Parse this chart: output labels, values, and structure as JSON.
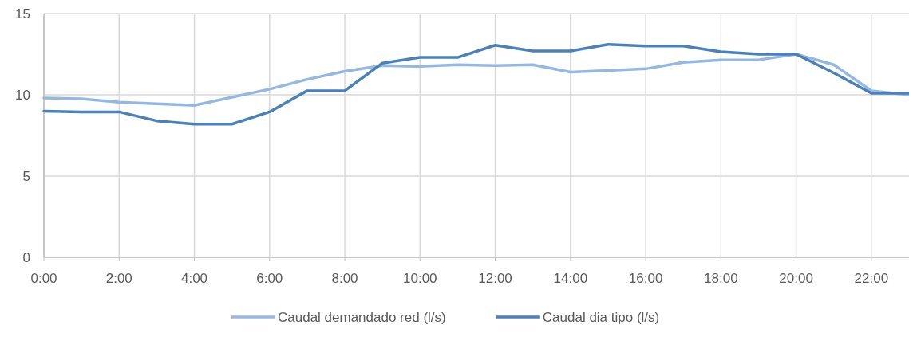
{
  "chart_data": {
    "type": "line",
    "x": [
      0,
      1,
      2,
      3,
      4,
      5,
      6,
      7,
      8,
      9,
      10,
      11,
      12,
      13,
      14,
      15,
      16,
      17,
      18,
      19,
      20,
      21,
      22,
      23
    ],
    "xlim": [
      0,
      23
    ],
    "xticks": [
      {
        "value": 0,
        "label": "0:00"
      },
      {
        "value": 2,
        "label": "2:00"
      },
      {
        "value": 4,
        "label": "4:00"
      },
      {
        "value": 6,
        "label": "6:00"
      },
      {
        "value": 8,
        "label": "8:00"
      },
      {
        "value": 10,
        "label": "10:00"
      },
      {
        "value": 12,
        "label": "12:00"
      },
      {
        "value": 14,
        "label": "14:00"
      },
      {
        "value": 16,
        "label": "16:00"
      },
      {
        "value": 18,
        "label": "18:00"
      },
      {
        "value": 20,
        "label": "20:00"
      },
      {
        "value": 22,
        "label": "22:00"
      }
    ],
    "ylim": [
      0,
      15
    ],
    "yticks": [
      0,
      5,
      10,
      15
    ],
    "grid": true,
    "legend": "bottom",
    "line_style": "solid",
    "marker": "none",
    "series": [
      {
        "name": "Caudal demandado red (l/s)",
        "color": "#95b8e3",
        "values": [
          9.8,
          9.75,
          9.55,
          9.45,
          9.35,
          9.85,
          10.35,
          10.95,
          11.45,
          11.8,
          11.75,
          11.85,
          11.8,
          11.85,
          11.4,
          11.5,
          11.6,
          12.0,
          12.15,
          12.15,
          12.5,
          11.85,
          10.25,
          10.0
        ]
      },
      {
        "name": "Caudal dia tipo (l/s)",
        "color": "#4a81b9",
        "values": [
          9.0,
          8.95,
          8.95,
          8.4,
          8.2,
          8.2,
          8.95,
          10.25,
          10.25,
          11.95,
          12.3,
          12.3,
          13.05,
          12.7,
          12.7,
          13.1,
          13.0,
          13.0,
          12.65,
          12.5,
          12.5,
          11.35,
          10.1,
          10.1
        ]
      }
    ]
  }
}
